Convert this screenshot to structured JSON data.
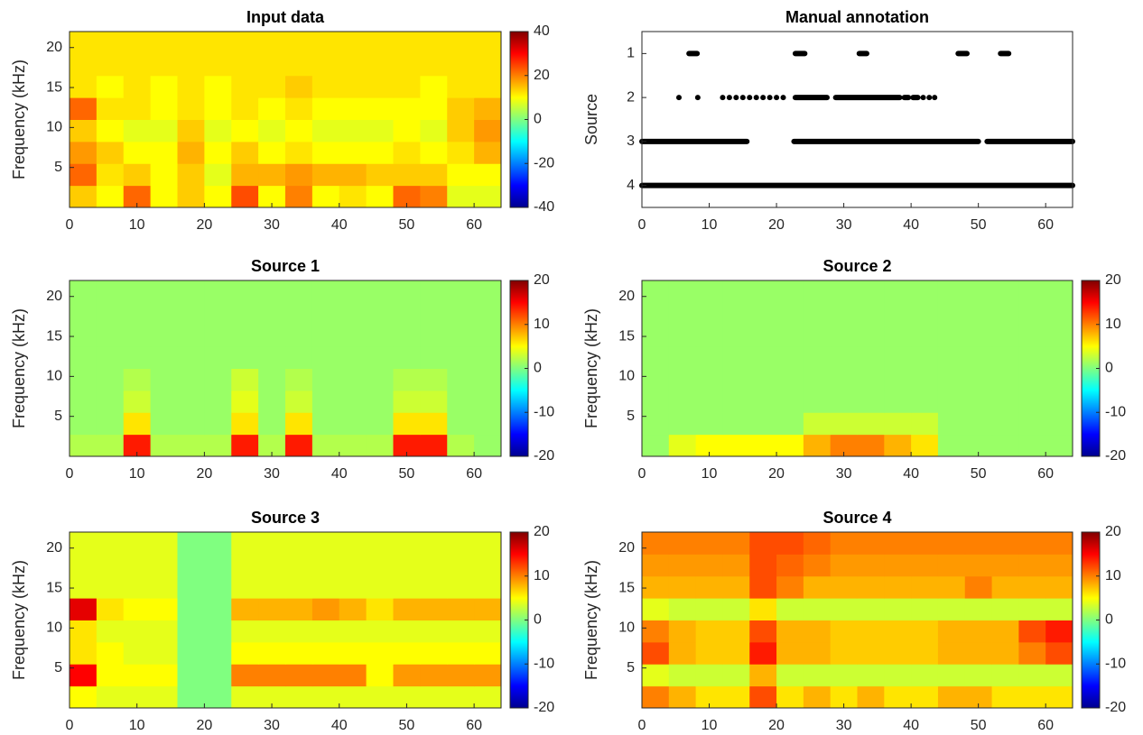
{
  "chart_data": [
    {
      "type": "heatmap",
      "title": "Input data",
      "ylabel": "Frequency (kHz)",
      "xlim": [
        0,
        64
      ],
      "xticks": [
        0,
        10,
        20,
        30,
        40,
        50,
        60
      ],
      "ylim": [
        0,
        22
      ],
      "yticks": [
        5,
        10,
        15,
        20
      ],
      "clim": [
        -40,
        40
      ],
      "cticks": [
        -40,
        -20,
        0,
        20,
        40
      ],
      "xbins": [
        0,
        4,
        8,
        12,
        16,
        20,
        24,
        28,
        32,
        36,
        40,
        44,
        48,
        52,
        56,
        60,
        64
      ],
      "ybins": [
        0,
        2.75,
        5.5,
        8.25,
        11,
        13.75,
        16.5,
        19.25,
        22
      ],
      "z": [
        [
          14,
          10,
          22,
          10,
          14,
          10,
          24,
          10,
          20,
          10,
          12,
          10,
          22,
          20,
          8,
          8
        ],
        [
          22,
          12,
          14,
          10,
          14,
          8,
          16,
          16,
          18,
          16,
          16,
          14,
          14,
          14,
          10,
          10
        ],
        [
          18,
          14,
          10,
          10,
          16,
          10,
          14,
          10,
          12,
          10,
          10,
          10,
          12,
          10,
          12,
          16
        ],
        [
          14,
          10,
          8,
          8,
          14,
          8,
          10,
          8,
          10,
          8,
          8,
          8,
          10,
          8,
          14,
          18
        ],
        [
          22,
          12,
          12,
          10,
          12,
          10,
          12,
          10,
          12,
          10,
          10,
          10,
          10,
          10,
          14,
          16
        ],
        [
          12,
          10,
          12,
          10,
          12,
          10,
          12,
          12,
          14,
          12,
          12,
          12,
          12,
          10,
          12,
          12
        ],
        [
          12,
          12,
          12,
          12,
          12,
          12,
          12,
          12,
          12,
          12,
          12,
          12,
          12,
          12,
          12,
          12
        ],
        [
          12,
          12,
          12,
          12,
          12,
          12,
          12,
          12,
          12,
          12,
          12,
          12,
          12,
          12,
          12,
          12
        ]
      ]
    },
    {
      "type": "scatter",
      "title": "Manual annotation",
      "ylabel": "Source",
      "xlim": [
        0,
        64
      ],
      "xticks": [
        0,
        10,
        20,
        30,
        40,
        50,
        60
      ],
      "ylim": [
        0.5,
        4.5
      ],
      "yticks": [
        1,
        2,
        3,
        4
      ],
      "reversed": true,
      "color": "#000000",
      "series": [
        {
          "value": 1,
          "segments": [
            [
              7,
              8.2
            ],
            [
              22.8,
              24.2
            ],
            [
              32.3,
              33.4
            ],
            [
              47,
              48.3
            ],
            [
              53.3,
              54.5
            ]
          ]
        },
        {
          "value": 2,
          "segments": [
            [
              5.5,
              5.5
            ],
            [
              8.3,
              8.3
            ],
            [
              12,
              12
            ],
            [
              13,
              13
            ],
            [
              14,
              14
            ],
            [
              15,
              15
            ],
            [
              16,
              16
            ],
            [
              17,
              17
            ],
            [
              18,
              18
            ],
            [
              19,
              19
            ],
            [
              20,
              20
            ],
            [
              21,
              21
            ],
            [
              22.8,
              27.5
            ],
            [
              28.8,
              38.3
            ],
            [
              39,
              39.6
            ],
            [
              40.3,
              41
            ],
            [
              41.8,
              41.8
            ],
            [
              42.7,
              42.7
            ],
            [
              43.5,
              43.5
            ]
          ]
        },
        {
          "value": 3,
          "segments": [
            [
              0,
              15.6
            ],
            [
              22.6,
              50
            ],
            [
              51.3,
              64
            ]
          ]
        },
        {
          "value": 4,
          "segments": [
            [
              0,
              64
            ]
          ]
        }
      ]
    },
    {
      "type": "heatmap",
      "title": "Source 1",
      "ylabel": "Frequency (kHz)",
      "xlim": [
        0,
        64
      ],
      "xticks": [
        0,
        10,
        20,
        30,
        40,
        50,
        60
      ],
      "ylim": [
        0,
        22
      ],
      "yticks": [
        5,
        10,
        15,
        20
      ],
      "clim": [
        -20,
        20
      ],
      "cticks": [
        -20,
        -10,
        0,
        10,
        20
      ],
      "xbins": [
        0,
        4,
        8,
        12,
        16,
        20,
        24,
        28,
        32,
        36,
        40,
        44,
        48,
        52,
        56,
        60,
        64
      ],
      "ybins": [
        0,
        2.75,
        5.5,
        8.25,
        11,
        13.75,
        16.5,
        19.25,
        22
      ],
      "z": [
        [
          2,
          2,
          14,
          2,
          2,
          2,
          14,
          2,
          14,
          2,
          2,
          2,
          14,
          14,
          2,
          1
        ],
        [
          1,
          1,
          6,
          1,
          1,
          1,
          6,
          1,
          6,
          1,
          1,
          1,
          6,
          6,
          1,
          1
        ],
        [
          1,
          1,
          3,
          1,
          1,
          1,
          4,
          1,
          3,
          1,
          1,
          1,
          3,
          3,
          1,
          1
        ],
        [
          1,
          1,
          2,
          1,
          1,
          1,
          3,
          1,
          2,
          1,
          1,
          1,
          2,
          2,
          1,
          1
        ],
        [
          1,
          1,
          1,
          1,
          1,
          1,
          1,
          1,
          1,
          1,
          1,
          1,
          1,
          1,
          1,
          1
        ],
        [
          1,
          1,
          1,
          1,
          1,
          1,
          1,
          1,
          1,
          1,
          1,
          1,
          1,
          1,
          1,
          1
        ],
        [
          1,
          1,
          1,
          1,
          1,
          1,
          1,
          1,
          1,
          1,
          1,
          1,
          1,
          1,
          1,
          1
        ],
        [
          1,
          1,
          1,
          1,
          1,
          1,
          1,
          1,
          1,
          1,
          1,
          1,
          1,
          1,
          1,
          1
        ]
      ]
    },
    {
      "type": "heatmap",
      "title": "Source 2",
      "ylabel": "Frequency (kHz)",
      "xlim": [
        0,
        64
      ],
      "xticks": [
        0,
        10,
        20,
        30,
        40,
        50,
        60
      ],
      "ylim": [
        0,
        22
      ],
      "yticks": [
        5,
        10,
        15,
        20
      ],
      "clim": [
        -20,
        20
      ],
      "cticks": [
        -20,
        -10,
        0,
        10,
        20
      ],
      "xbins": [
        0,
        4,
        8,
        12,
        16,
        20,
        24,
        28,
        32,
        36,
        40,
        44,
        48,
        52,
        56,
        60,
        64
      ],
      "ybins": [
        0,
        2.75,
        5.5,
        8.25,
        11,
        13.75,
        16.5,
        19.25,
        22
      ],
      "z": [
        [
          1,
          4,
          5,
          5,
          5,
          5,
          8,
          10,
          10,
          8,
          6,
          1,
          1,
          1,
          1,
          1
        ],
        [
          1,
          1,
          1,
          1,
          1,
          1,
          3,
          3,
          3,
          3,
          3,
          1,
          1,
          1,
          1,
          1
        ],
        [
          1,
          1,
          1,
          1,
          1,
          1,
          1,
          1,
          1,
          1,
          1,
          1,
          1,
          1,
          1,
          1
        ],
        [
          1,
          1,
          1,
          1,
          1,
          1,
          1,
          1,
          1,
          1,
          1,
          1,
          1,
          1,
          1,
          1
        ],
        [
          1,
          1,
          1,
          1,
          1,
          1,
          1,
          1,
          1,
          1,
          1,
          1,
          1,
          1,
          1,
          1
        ],
        [
          1,
          1,
          1,
          1,
          1,
          1,
          1,
          1,
          1,
          1,
          1,
          1,
          1,
          1,
          1,
          1
        ],
        [
          1,
          1,
          1,
          1,
          1,
          1,
          1,
          1,
          1,
          1,
          1,
          1,
          1,
          1,
          1,
          1
        ],
        [
          1,
          1,
          1,
          1,
          1,
          1,
          1,
          1,
          1,
          1,
          1,
          1,
          1,
          1,
          1,
          1
        ]
      ]
    },
    {
      "type": "heatmap",
      "title": "Source 3",
      "ylabel": "Frequency (kHz)",
      "xlim": [
        0,
        64
      ],
      "xticks": [
        0,
        10,
        20,
        30,
        40,
        50,
        60
      ],
      "ylim": [
        0,
        22
      ],
      "yticks": [
        5,
        10,
        15,
        20
      ],
      "clim": [
        -20,
        20
      ],
      "cticks": [
        -20,
        -10,
        0,
        10,
        20
      ],
      "xbins": [
        0,
        4,
        8,
        12,
        16,
        20,
        24,
        28,
        32,
        36,
        40,
        44,
        48,
        52,
        56,
        60,
        64
      ],
      "ybins": [
        0,
        2.75,
        5.5,
        8.25,
        11,
        13.75,
        16.5,
        19.25,
        22
      ],
      "z": [
        [
          5,
          4,
          4,
          4,
          0,
          0,
          4,
          4,
          4,
          4,
          4,
          4,
          4,
          4,
          4,
          4
        ],
        [
          15,
          5,
          5,
          5,
          0,
          0,
          10,
          10,
          10,
          10,
          10,
          5,
          9,
          9,
          9,
          9
        ],
        [
          6,
          5,
          4,
          4,
          0,
          0,
          5,
          5,
          5,
          5,
          5,
          5,
          5,
          5,
          5,
          5
        ],
        [
          6,
          4,
          4,
          4,
          0,
          0,
          4,
          4,
          4,
          4,
          4,
          4,
          4,
          4,
          4,
          4
        ],
        [
          16,
          6,
          5,
          5,
          0,
          0,
          8,
          8,
          8,
          9,
          8,
          6,
          8,
          8,
          8,
          8
        ],
        [
          4,
          4,
          4,
          4,
          0,
          0,
          4,
          4,
          4,
          4,
          4,
          4,
          4,
          4,
          4,
          4
        ],
        [
          4,
          4,
          4,
          4,
          0,
          0,
          4,
          4,
          4,
          4,
          4,
          4,
          4,
          4,
          4,
          4
        ],
        [
          4,
          4,
          4,
          4,
          0,
          0,
          4,
          4,
          4,
          4,
          4,
          4,
          4,
          4,
          4,
          4
        ]
      ]
    },
    {
      "type": "heatmap",
      "title": "Source 4",
      "ylabel": "Frequency (kHz)",
      "xlim": [
        0,
        64
      ],
      "xticks": [
        0,
        10,
        20,
        30,
        40,
        50,
        60
      ],
      "ylim": [
        0,
        22
      ],
      "yticks": [
        5,
        10,
        15,
        20
      ],
      "clim": [
        -20,
        20
      ],
      "cticks": [
        -20,
        -10,
        0,
        10,
        20
      ],
      "xbins": [
        0,
        4,
        8,
        12,
        16,
        20,
        24,
        28,
        32,
        36,
        40,
        44,
        48,
        52,
        56,
        60,
        64
      ],
      "ybins": [
        0,
        2.75,
        5.5,
        8.25,
        11,
        13.75,
        16.5,
        19.25,
        22
      ],
      "z": [
        [
          10,
          8,
          6,
          6,
          12,
          6,
          8,
          6,
          8,
          6,
          6,
          8,
          8,
          6,
          6,
          6
        ],
        [
          4,
          3,
          3,
          3,
          8,
          3,
          3,
          3,
          3,
          3,
          3,
          3,
          3,
          3,
          3,
          3
        ],
        [
          12,
          8,
          7,
          7,
          14,
          8,
          8,
          7,
          7,
          7,
          7,
          8,
          8,
          8,
          10,
          12
        ],
        [
          10,
          8,
          7,
          7,
          12,
          8,
          8,
          7,
          7,
          7,
          7,
          8,
          8,
          8,
          12,
          14
        ],
        [
          4,
          3,
          3,
          3,
          6,
          3,
          3,
          3,
          3,
          3,
          3,
          3,
          3,
          3,
          3,
          3
        ],
        [
          8,
          8,
          8,
          8,
          12,
          10,
          8,
          8,
          8,
          8,
          8,
          8,
          10,
          8,
          8,
          8
        ],
        [
          9,
          9,
          9,
          9,
          12,
          11,
          10,
          9,
          9,
          9,
          9,
          9,
          9,
          9,
          9,
          9
        ],
        [
          10,
          10,
          10,
          10,
          12,
          12,
          11,
          10,
          10,
          10,
          10,
          10,
          10,
          10,
          10,
          10
        ]
      ]
    }
  ]
}
